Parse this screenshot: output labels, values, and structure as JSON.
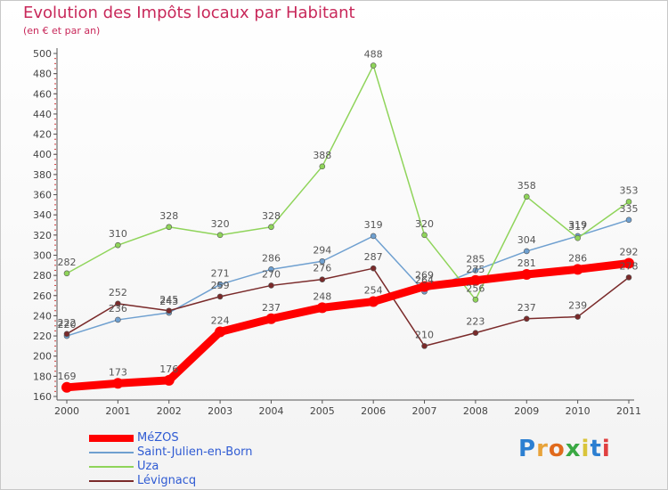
{
  "header": {
    "title": "Evolution des Impôts locaux par Habitant",
    "subtitle": "(en € et par an)"
  },
  "logo": {
    "text": "Proxiti",
    "colors": [
      "#2c7fd1",
      "#e8a33a",
      "#e06a1c",
      "#3aa843",
      "#d9c43a",
      "#2c7fd1",
      "#e04040"
    ]
  },
  "chart_data": {
    "type": "line",
    "title": "Evolution des Impôts locaux par Habitant",
    "subtitle": "(en € et par an)",
    "x": [
      "2000",
      "2001",
      "2002",
      "2003",
      "2004",
      "2005",
      "2006",
      "2007",
      "2008",
      "2009",
      "2010",
      "2011"
    ],
    "ylim": [
      160,
      500
    ],
    "yticks": [
      160,
      180,
      200,
      220,
      240,
      260,
      280,
      300,
      320,
      340,
      360,
      380,
      400,
      420,
      440,
      460,
      480,
      500
    ],
    "grid": false,
    "legend": "bottom-left",
    "series": [
      {
        "name": "MéZOS",
        "color": "#ff0000",
        "values": [
          169,
          173,
          176,
          224,
          237,
          248,
          254,
          269,
          275,
          281,
          286,
          292
        ],
        "labels": [
          "169",
          "173",
          "176",
          "224",
          "237",
          "248",
          "254",
          "269",
          "275",
          "281",
          "286",
          "292"
        ]
      },
      {
        "name": "Saint-Julien-en-Born",
        "color": "#6fa0d0",
        "values": [
          220,
          236,
          243,
          271,
          286,
          294,
          319,
          264,
          285,
          304,
          319,
          335
        ],
        "labels": [
          "220",
          "236",
          "243",
          "271",
          "286",
          "294",
          "319",
          "264",
          "285",
          "304",
          "319",
          "335"
        ]
      },
      {
        "name": "Uza",
        "color": "#8fd45a",
        "values": [
          282,
          310,
          328,
          320,
          328,
          388,
          488,
          320,
          256,
          358,
          317,
          353
        ],
        "labels": [
          "282",
          "310",
          "328",
          "320",
          "328",
          "388",
          "488",
          "320",
          "256",
          "358",
          "317",
          "353"
        ]
      },
      {
        "name": "Lévignacq",
        "color": "#7a2a2a",
        "values": [
          222,
          252,
          245,
          259,
          270,
          276,
          287,
          210,
          223,
          237,
          239,
          278
        ],
        "labels": [
          "222",
          "252",
          "245",
          "259",
          "270",
          "276",
          "287",
          "210",
          "223",
          "237",
          "239",
          "278"
        ]
      }
    ]
  }
}
